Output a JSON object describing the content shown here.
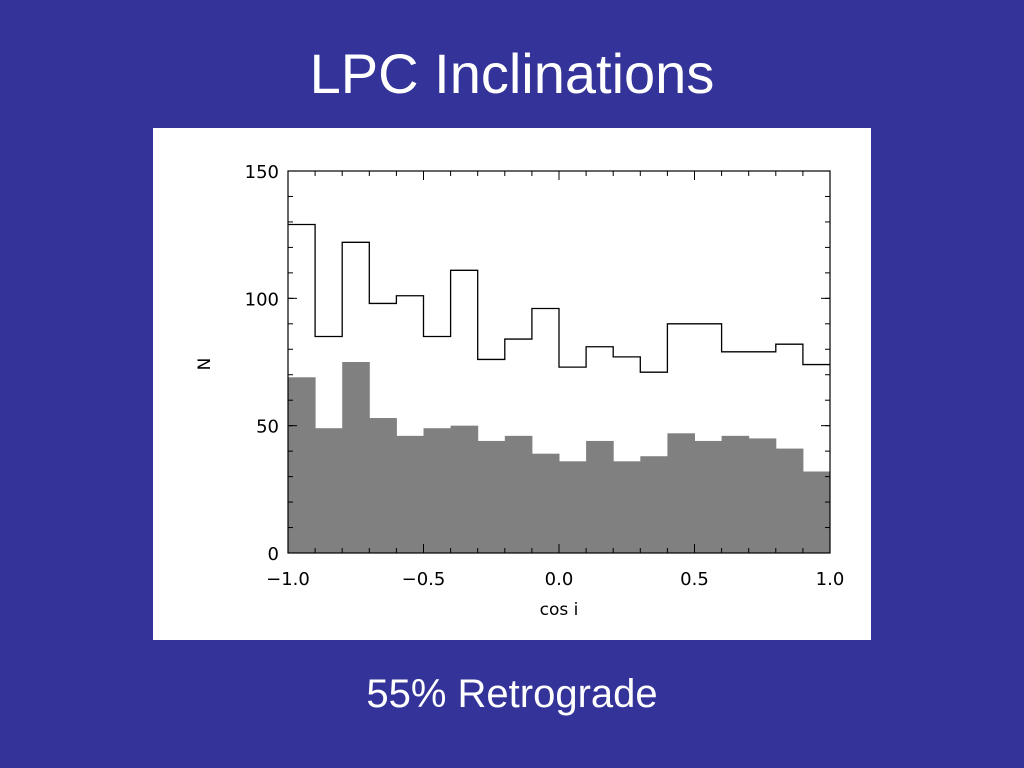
{
  "slide": {
    "title": "LPC Inclinations",
    "caption": "55% Retrograde",
    "background_color": "#333399"
  },
  "chart_data": {
    "type": "histogram",
    "xlabel": "cos i",
    "ylabel": "N",
    "xlim": [
      -1.0,
      1.0
    ],
    "ylim": [
      0,
      150
    ],
    "x_ticks": [
      -1.0,
      -0.5,
      0.0,
      0.5,
      1.0
    ],
    "x_tick_labels": [
      "−1.0",
      "−0.5",
      "0.0",
      "0.5",
      "1.0"
    ],
    "y_ticks": [
      0,
      50,
      100,
      150
    ],
    "y_tick_labels": [
      "0",
      "50",
      "100",
      "150"
    ],
    "bin_edges": [
      -1.0,
      -0.9,
      -0.8,
      -0.7,
      -0.6,
      -0.5,
      -0.4,
      -0.3,
      -0.2,
      -0.1,
      0.0,
      0.1,
      0.2,
      0.3,
      0.4,
      0.5,
      0.6,
      0.7,
      0.8,
      0.9,
      1.0
    ],
    "series": [
      {
        "style": "outline",
        "color": "#000000",
        "values": [
          129,
          85,
          122,
          98,
          101,
          85,
          111,
          76,
          84,
          96,
          73,
          81,
          77,
          71,
          90,
          90,
          79,
          79,
          82,
          74
        ]
      },
      {
        "style": "filled",
        "color": "#808080",
        "values": [
          69,
          49,
          75,
          53,
          46,
          49,
          50,
          44,
          46,
          39,
          36,
          44,
          36,
          38,
          47,
          44,
          46,
          45,
          41,
          32
        ]
      }
    ],
    "grid": false
  }
}
